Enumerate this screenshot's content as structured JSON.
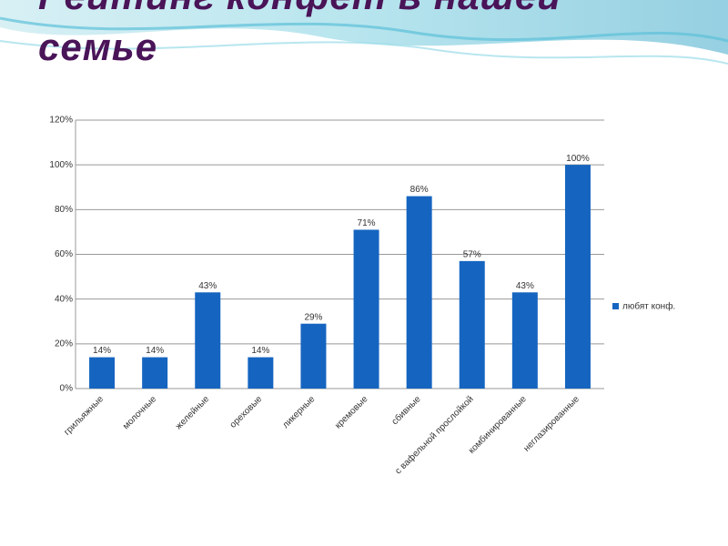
{
  "chart_data": {
    "type": "bar",
    "title": "Рейтинг конфет в нашей семье",
    "categories": [
      "грильяжные",
      "молочные",
      "желейные",
      "ореховые",
      "ликерные",
      "кремовые",
      "сбивные",
      "с вафельной прослойкой",
      "комбинированные",
      "неглазированные"
    ],
    "series": [
      {
        "name": "любят конф.",
        "color": "#1565c0",
        "values": [
          14,
          14,
          43,
          14,
          29,
          71,
          86,
          57,
          43,
          100
        ],
        "value_labels": [
          "14%",
          "14%",
          "43%",
          "14%",
          "29%",
          "71%",
          "86%",
          "57%",
          "43%",
          "100%"
        ]
      }
    ],
    "ylim": [
      0,
      120
    ],
    "yticks": [
      {
        "value": 0,
        "label": "0%"
      },
      {
        "value": 20,
        "label": "20%"
      },
      {
        "value": 40,
        "label": "40%"
      },
      {
        "value": 60,
        "label": "60%"
      },
      {
        "value": 80,
        "label": "80%"
      },
      {
        "value": 100,
        "label": "100%"
      },
      {
        "value": 120,
        "label": "120%"
      }
    ],
    "grid": true,
    "legend": "right"
  }
}
